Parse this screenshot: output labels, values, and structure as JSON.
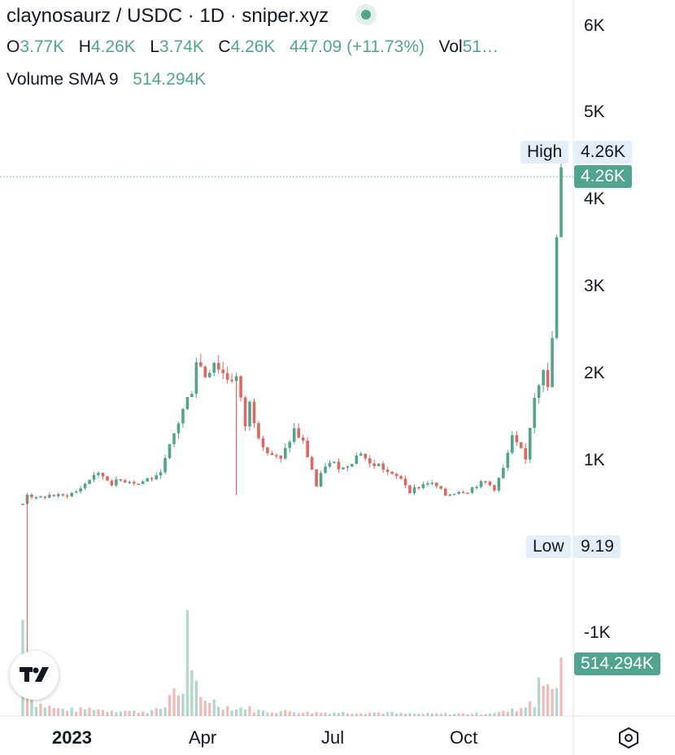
{
  "header": {
    "title": "claynosaurz / USDC · 1D · sniper.xyz",
    "ohlc": [
      {
        "key": "O",
        "value": "3.77K"
      },
      {
        "key": "H",
        "value": "4.26K"
      },
      {
        "key": "L",
        "value": "3.74K"
      },
      {
        "key": "C",
        "value": "4.26K"
      }
    ],
    "change": "447.09 (+11.73%)",
    "vol_label": "Vol",
    "vol_value": "51…",
    "volume_sma_label": "Volume SMA 9",
    "volume_sma_value": "514.294K"
  },
  "price_scale": {
    "ticks": [
      "6K",
      "5K",
      "4K",
      "3K",
      "2K",
      "1K",
      "-1K"
    ],
    "high_label": "High",
    "high_value": "4.26K",
    "last_price": "4.26K",
    "low_label": "Low",
    "low_value": "9.19",
    "volume_last": "514.294K"
  },
  "time_scale": {
    "ticks": [
      "2023",
      "Apr",
      "Jul",
      "Oct"
    ]
  },
  "icons": {
    "logo": "tradingview-logo-icon",
    "settings": "settings-hexagon-icon"
  },
  "colors": {
    "up": "#51a58f",
    "down": "#e0675f",
    "grid": "#e0e3eb",
    "label_bg": "#e4eef9"
  },
  "chart_data": {
    "type": "candlestick",
    "title": "claynosaurz / USDC · 1D · sniper.xyz",
    "ylim": [
      -1500,
      6300
    ],
    "y_ticks": [
      6000,
      5000,
      4000,
      3000,
      2000,
      1000,
      -1000
    ],
    "x_ticks": [
      "2023",
      "Apr",
      "Jul",
      "Oct"
    ],
    "series": [
      {
        "name": "price",
        "points": [
          [
            0,
            500
          ],
          [
            1,
            620
          ],
          [
            3,
            560
          ],
          [
            6,
            600
          ],
          [
            9,
            590
          ],
          [
            12,
            640
          ],
          [
            14,
            730
          ],
          [
            16,
            840
          ],
          [
            18,
            820
          ],
          [
            20,
            740
          ],
          [
            22,
            770
          ],
          [
            24,
            770
          ],
          [
            26,
            730
          ],
          [
            28,
            790
          ],
          [
            30,
            800
          ],
          [
            32,
            1000
          ],
          [
            34,
            1300
          ],
          [
            36,
            1580
          ],
          [
            38,
            1820
          ],
          [
            39,
            2170
          ],
          [
            41,
            1980
          ],
          [
            43,
            2150
          ],
          [
            45,
            2000
          ],
          [
            46,
            1950
          ],
          [
            48,
            1950
          ],
          [
            50,
            1400
          ],
          [
            51,
            1650
          ],
          [
            53,
            1300
          ],
          [
            55,
            1100
          ],
          [
            58,
            1000
          ],
          [
            61,
            1350
          ],
          [
            63,
            1200
          ],
          [
            65,
            900
          ],
          [
            66,
            700
          ],
          [
            68,
            950
          ],
          [
            70,
            960
          ],
          [
            72,
            910
          ],
          [
            74,
            1000
          ],
          [
            76,
            1100
          ],
          [
            78,
            950
          ],
          [
            80,
            950
          ],
          [
            83,
            820
          ],
          [
            85,
            800
          ],
          [
            87,
            650
          ],
          [
            89,
            700
          ],
          [
            91,
            750
          ],
          [
            93,
            700
          ],
          [
            95,
            600
          ],
          [
            98,
            650
          ],
          [
            100,
            650
          ],
          [
            102,
            720
          ],
          [
            104,
            750
          ],
          [
            106,
            680
          ],
          [
            108,
            900
          ],
          [
            110,
            1250
          ],
          [
            112,
            1100
          ],
          [
            113,
            1000
          ],
          [
            114,
            1400
          ],
          [
            115,
            1750
          ],
          [
            117,
            2100
          ],
          [
            118,
            1800
          ],
          [
            119,
            2400
          ],
          [
            120,
            3500
          ],
          [
            121,
            4260
          ]
        ]
      },
      {
        "name": "volume",
        "points": [
          [
            0,
            8.5
          ],
          [
            1,
            3.0
          ],
          [
            2,
            2.0
          ],
          [
            3,
            1.2
          ],
          [
            4,
            1.0
          ],
          [
            5,
            0.9
          ],
          [
            6,
            0.8
          ],
          [
            8,
            0.6
          ],
          [
            10,
            0.6
          ],
          [
            12,
            0.5
          ],
          [
            14,
            0.6
          ],
          [
            16,
            0.7
          ],
          [
            18,
            0.5
          ],
          [
            20,
            0.5
          ],
          [
            22,
            0.5
          ],
          [
            24,
            0.4
          ],
          [
            26,
            0.4
          ],
          [
            28,
            0.4
          ],
          [
            30,
            0.5
          ],
          [
            32,
            0.8
          ],
          [
            34,
            3.0
          ],
          [
            35,
            1.5
          ],
          [
            36,
            2.4
          ],
          [
            37,
            8.0
          ],
          [
            38,
            3.0
          ],
          [
            39,
            2.6
          ],
          [
            40,
            1.6
          ],
          [
            42,
            1.5
          ],
          [
            44,
            1.0
          ],
          [
            46,
            0.8
          ],
          [
            48,
            0.6
          ],
          [
            50,
            0.8
          ],
          [
            52,
            0.5
          ],
          [
            55,
            0.4
          ],
          [
            58,
            0.4
          ],
          [
            61,
            0.4
          ],
          [
            64,
            0.3
          ],
          [
            67,
            0.3
          ],
          [
            70,
            0.3
          ],
          [
            73,
            0.3
          ],
          [
            76,
            0.3
          ],
          [
            79,
            0.3
          ],
          [
            82,
            0.3
          ],
          [
            85,
            0.2
          ],
          [
            88,
            0.2
          ],
          [
            91,
            0.2
          ],
          [
            94,
            0.2
          ],
          [
            97,
            0.2
          ],
          [
            100,
            0.2
          ],
          [
            103,
            0.2
          ],
          [
            106,
            0.3
          ],
          [
            109,
            0.4
          ],
          [
            111,
            0.6
          ],
          [
            113,
            0.8
          ],
          [
            114,
            1.5
          ],
          [
            115,
            1.2
          ],
          [
            116,
            3.5
          ],
          [
            117,
            2.0
          ],
          [
            118,
            3.0
          ],
          [
            119,
            2.6
          ],
          [
            120,
            3.5
          ],
          [
            121,
            4.0
          ]
        ]
      }
    ]
  }
}
